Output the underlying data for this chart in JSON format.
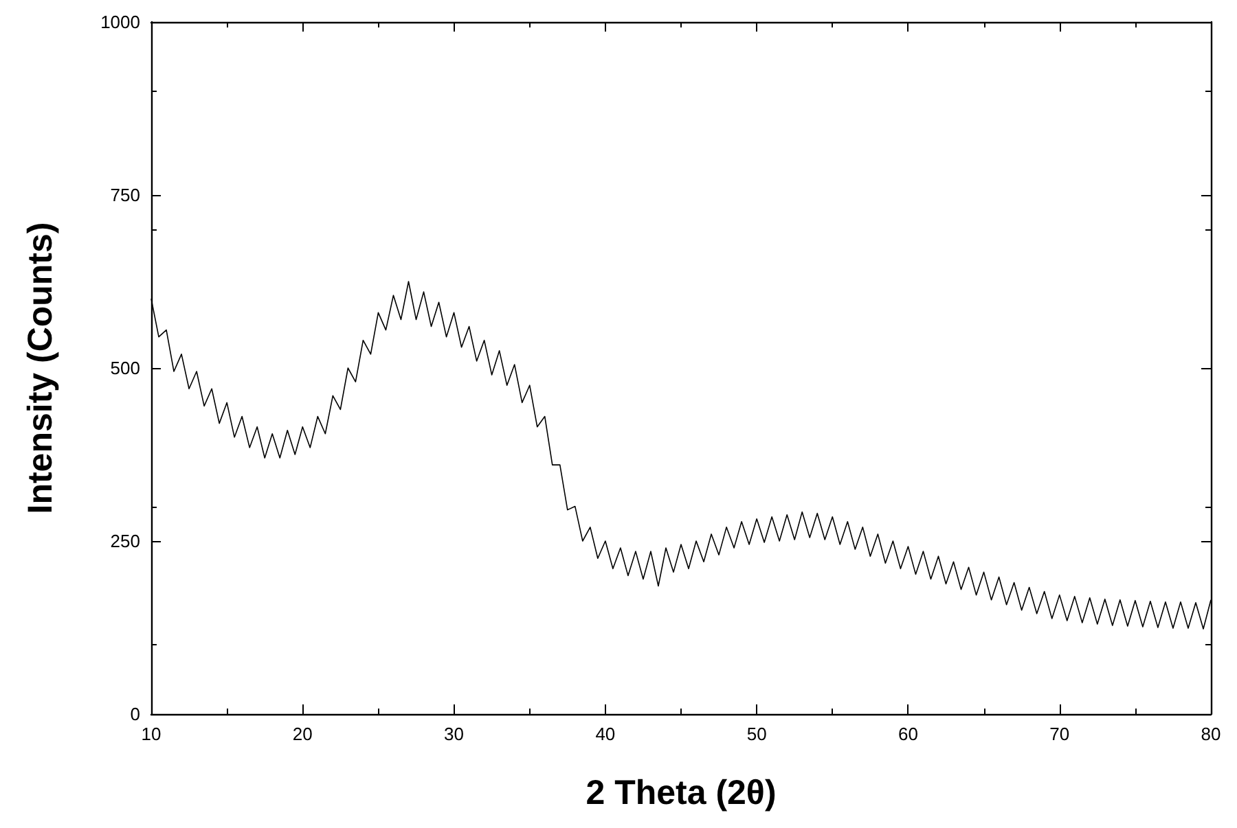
{
  "chart_data": {
    "type": "line",
    "xlabel": "2 Theta (2θ)",
    "ylabel": "Intensity (Counts)",
    "xlim": [
      10,
      80
    ],
    "xticks": [
      10,
      20,
      30,
      40,
      50,
      60,
      70,
      80
    ],
    "ylim": [
      0,
      1000
    ],
    "yticks": [
      0,
      250,
      500,
      750,
      1000
    ],
    "marker": "none",
    "line_style": "solid",
    "x": [
      10,
      10.5,
      11,
      11.5,
      12,
      12.5,
      13,
      13.5,
      14,
      14.5,
      15,
      15.5,
      16,
      16.5,
      17,
      17.5,
      18,
      18.5,
      19,
      19.5,
      20,
      20.5,
      21,
      21.5,
      22,
      22.5,
      23,
      23.5,
      24,
      24.5,
      25,
      25.5,
      26,
      26.5,
      27,
      27.5,
      28,
      28.5,
      29,
      29.5,
      30,
      30.5,
      31,
      31.5,
      32,
      32.5,
      33,
      33.5,
      34,
      34.5,
      35,
      35.5,
      36,
      36.5,
      37,
      37.5,
      38,
      38.5,
      39,
      39.5,
      40,
      40.5,
      41,
      41.5,
      42,
      42.5,
      43,
      43.5,
      44,
      44.5,
      45,
      45.5,
      46,
      46.5,
      47,
      47.5,
      48,
      48.5,
      49,
      49.5,
      50,
      50.5,
      51,
      51.5,
      52,
      52.5,
      53,
      53.5,
      54,
      54.5,
      55,
      55.5,
      56,
      56.5,
      57,
      57.5,
      58,
      58.5,
      59,
      59.5,
      60,
      60.5,
      61,
      61.5,
      62,
      62.5,
      63,
      63.5,
      64,
      64.5,
      65,
      65.5,
      66,
      66.5,
      67,
      67.5,
      68,
      68.5,
      69,
      69.5,
      70,
      70.5,
      71,
      71.5,
      72,
      72.5,
      73,
      73.5,
      74,
      74.5,
      75,
      75.5,
      76,
      76.5,
      77,
      77.5,
      78,
      78.5,
      79,
      79.5,
      80
    ],
    "series": [
      {
        "color": "#000000",
        "values": [
          600,
          545,
          555,
          495,
          520,
          470,
          495,
          445,
          470,
          420,
          450,
          400,
          430,
          385,
          415,
          370,
          405,
          370,
          410,
          375,
          415,
          385,
          430,
          405,
          460,
          440,
          500,
          480,
          540,
          520,
          580,
          555,
          605,
          570,
          625,
          570,
          610,
          560,
          595,
          545,
          580,
          530,
          560,
          510,
          540,
          490,
          525,
          475,
          505,
          450,
          475,
          415,
          430,
          360,
          360,
          295,
          300,
          250,
          270,
          225,
          250,
          210,
          240,
          200,
          235,
          195,
          235,
          185,
          240,
          205,
          245,
          210,
          250,
          220,
          260,
          230,
          270,
          240,
          278,
          245,
          282,
          248,
          285,
          250,
          288,
          252,
          292,
          255,
          290,
          252,
          285,
          245,
          278,
          238,
          270,
          228,
          260,
          218,
          250,
          210,
          242,
          202,
          235,
          195,
          228,
          188,
          220,
          180,
          212,
          172,
          205,
          165,
          198,
          158,
          190,
          150,
          183,
          145,
          177,
          138,
          172,
          135,
          170,
          132,
          168,
          130,
          166,
          128,
          165,
          127,
          164,
          126,
          163,
          125,
          162,
          124,
          162,
          124,
          161,
          123,
          165
        ]
      }
    ]
  }
}
